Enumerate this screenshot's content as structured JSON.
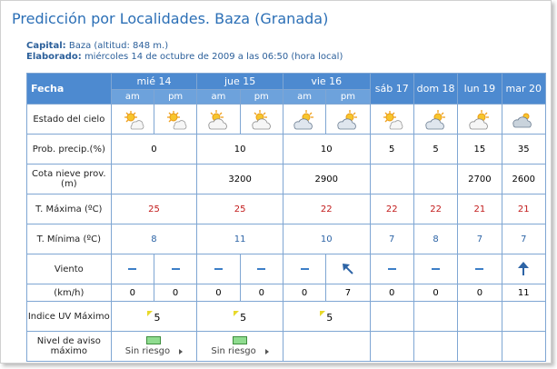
{
  "header": {
    "title": "Predicción por Localidades. Baza (Granada)",
    "capital_label": "Capital:",
    "capital_value": "Baza (altitud: 848 m.)",
    "elaborado_label": "Elaborado:",
    "elaborado_value": "miércoles 14 de octubre de 2009 a las 06:50 (hora local)"
  },
  "table": {
    "fecha_label": "Fecha",
    "days": [
      "mié 14",
      "jue 15",
      "vie 16",
      "sáb 17",
      "dom 18",
      "lun 19",
      "mar 20"
    ],
    "am": "am",
    "pm": "pm",
    "labels": {
      "estado": "Estado del cielo",
      "prob": "Prob. precip.(%)",
      "cota": "Cota nieve prov.(m)",
      "tmax": "T. Máxima (ºC)",
      "tmin": "T. Mínima (ºC)",
      "viento": "Viento",
      "kmh": "(km/h)",
      "uv": "Indice UV Máximo",
      "aviso": "Nivel de aviso máximo"
    },
    "sky_icons": [
      "sun-cloud-icon",
      "sun-cloud-icon",
      "sun-cloud-icon",
      "sun-cloud-icon",
      "cloud-sun-icon",
      "cloud-sun-icon",
      "sun-cloud-icon",
      "cloud-sun-icon",
      "cloud-sun-icon",
      "cloud-icon"
    ],
    "prob": [
      "0",
      "10",
      "10",
      "5",
      "5",
      "15",
      "35"
    ],
    "cota": [
      "",
      "3200",
      "2900",
      "",
      "",
      "2700",
      "2600"
    ],
    "tmax": [
      "25",
      "25",
      "22",
      "22",
      "22",
      "21",
      "21"
    ],
    "tmin": [
      "8",
      "11",
      "10",
      "7",
      "8",
      "7",
      "7"
    ],
    "wind_icons": [
      "dash-icon",
      "dash-icon",
      "dash-icon",
      "dash-icon",
      "dash-icon",
      "arrow-northwest-icon",
      "dash-icon",
      "dash-icon",
      "dash-icon",
      "arrow-north-icon"
    ],
    "kmh": [
      "0",
      "0",
      "0",
      "0",
      "0",
      "7",
      "0",
      "0",
      "0",
      "11"
    ],
    "uv": [
      "5",
      "5",
      "5"
    ],
    "aviso": [
      "Sin riesgo",
      "Sin riesgo"
    ],
    "colors": {
      "header_bg": "#4d8ad0",
      "subheader_bg": "#6da2dc",
      "border": "#7fa6d3",
      "tmax": "#c21b1b",
      "tmin": "#2d64a6",
      "title": "#2b6fb6"
    }
  }
}
